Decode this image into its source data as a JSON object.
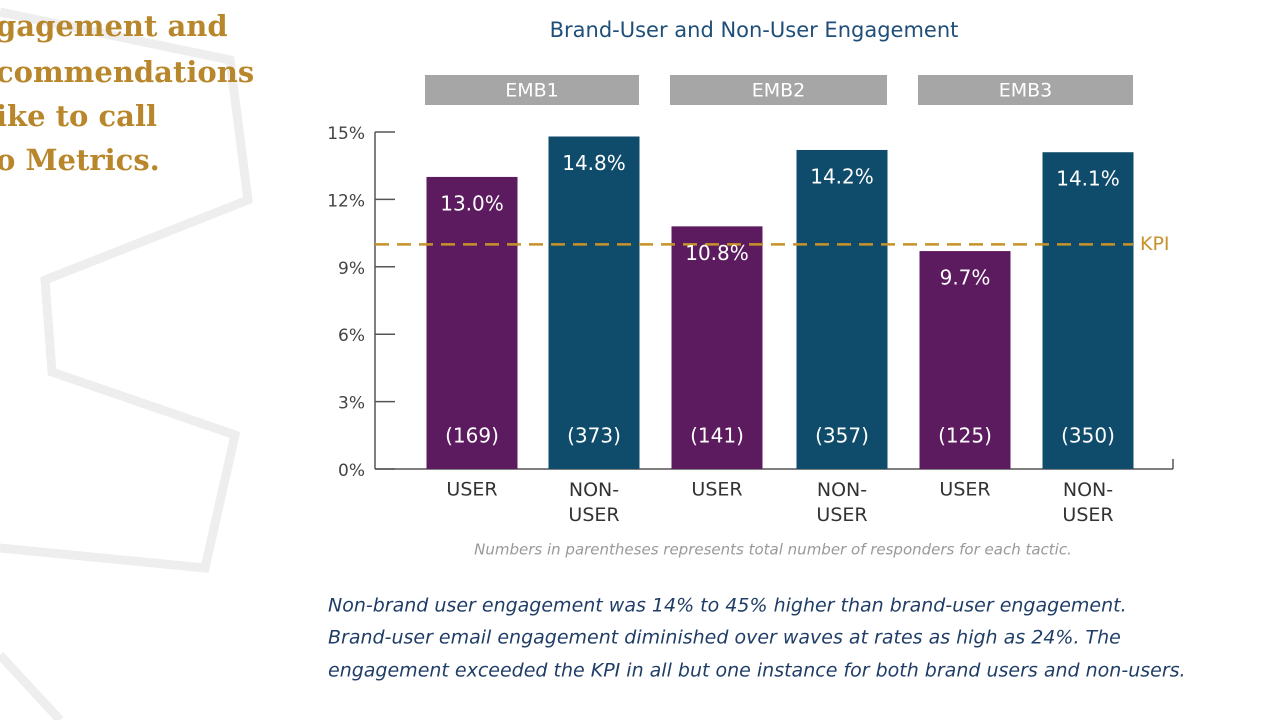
{
  "slide": {
    "heading_lines": [
      "gagement and",
      "commendations",
      "ike to call",
      "o Metrics."
    ],
    "paragraph_lines": [
      "Non-brand user engagement was 14% to 45% higher than brand-user engagement.",
      "Brand-user email engagement diminished over waves at rates as high as 24%. The",
      "engagement exceeded the KPI in all but one instance for both brand users and non-users."
    ]
  },
  "chart_data": {
    "type": "bar",
    "title": "Brand-User and Non-User Engagement",
    "groups": [
      "EMB1",
      "EMB2",
      "EMB3"
    ],
    "categories": [
      "USER",
      "NON-USER",
      "USER",
      "NON-USER",
      "USER",
      "NON-USER"
    ],
    "values": [
      13.0,
      14.8,
      10.8,
      14.2,
      9.7,
      14.1
    ],
    "value_labels": [
      "13.0%",
      "14.8%",
      "10.8%",
      "14.2%",
      "9.7%",
      "14.1%"
    ],
    "responders": [
      "(169)",
      "(373)",
      "(141)",
      "(357)",
      "(125)",
      "(350)"
    ],
    "colors": [
      "#5c1b5f",
      "#0f4c6b",
      "#5c1b5f",
      "#0f4c6b",
      "#5c1b5f",
      "#0f4c6b"
    ],
    "ylim": [
      0,
      15
    ],
    "yticks": [
      {
        "value": 0,
        "label": "0%"
      },
      {
        "value": 3,
        "label": "3%"
      },
      {
        "value": 6,
        "label": "6%"
      },
      {
        "value": 9,
        "label": "9%"
      },
      {
        "value": 12,
        "label": "12%"
      },
      {
        "value": 15,
        "label": "15%"
      }
    ],
    "kpi": {
      "value": 10,
      "label": "KPI",
      "color": "#c8922a"
    },
    "note": "Numbers in parentheses represents total number of responders for each tactic."
  }
}
